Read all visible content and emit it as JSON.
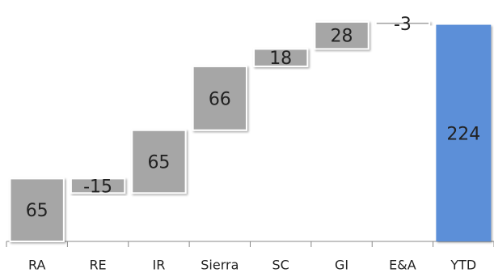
{
  "chart_data": {
    "type": "waterfall",
    "categories": [
      "RA",
      "RE",
      "IR",
      "Sierra",
      "SC",
      "GI",
      "E&A",
      "YTD"
    ],
    "values": [
      65,
      -15,
      65,
      66,
      18,
      28,
      -3,
      224
    ],
    "is_total": [
      false,
      false,
      false,
      false,
      false,
      false,
      false,
      true
    ],
    "color": "#a6a6a6",
    "total_color": "#5b8fd8",
    "grid": false
  }
}
